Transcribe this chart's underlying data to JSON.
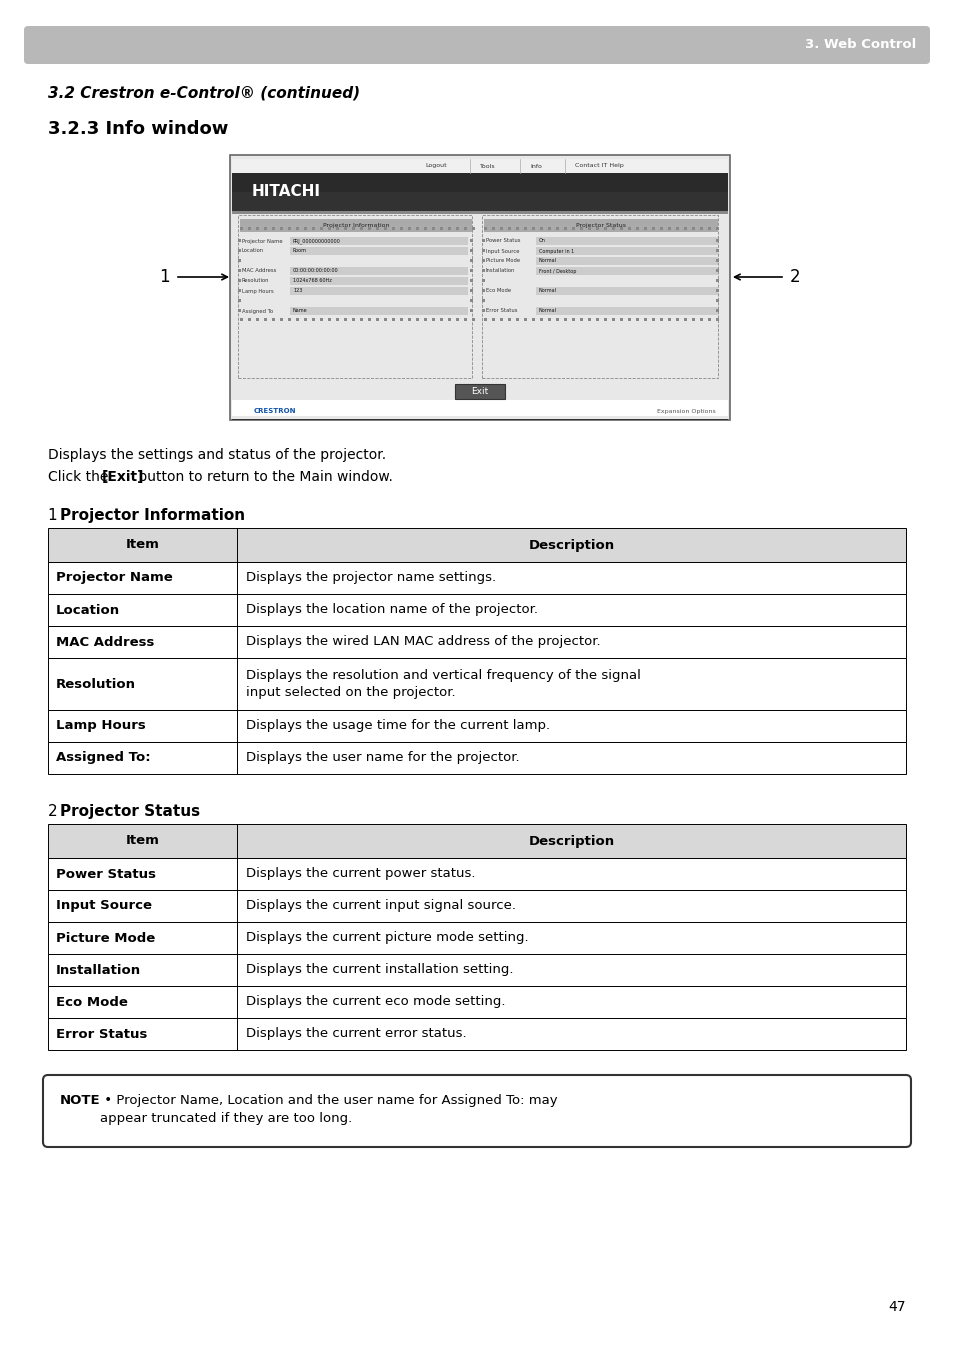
{
  "page_bg": "#ffffff",
  "header_bar_color": "#b8b8b8",
  "header_text": "3. Web Control",
  "header_text_color": "#ffffff",
  "section_title_italic": "3.2 Crestron e-Control® (continued)",
  "section_title_bold": "3.2.3 Info window",
  "body_text1": "Displays the settings and status of the projector.",
  "body_text2_pre": "Click the ",
  "body_text2_bold": "[Exit]",
  "body_text2_post": " button to return to the Main window.",
  "section1_title": "Projector Information",
  "section2_title": "Projector Status",
  "table1_header": [
    "Item",
    "Description"
  ],
  "table1_rows": [
    [
      "Projector Name",
      "Displays the projector name settings."
    ],
    [
      "Location",
      "Displays the location name of the projector."
    ],
    [
      "MAC Address",
      "Displays the wired LAN MAC address of the projector."
    ],
    [
      "Resolution",
      "Displays the resolution and vertical frequency of the signal\ninput selected on the projector."
    ],
    [
      "Lamp Hours",
      "Displays the usage time for the current lamp."
    ],
    [
      "Assigned To:",
      "Displays the user name for the projector."
    ]
  ],
  "table2_header": [
    "Item",
    "Description"
  ],
  "table2_rows": [
    [
      "Power Status",
      "Displays the current power status."
    ],
    [
      "Input Source",
      "Displays the current input signal source."
    ],
    [
      "Picture Mode",
      "Displays the current picture mode setting."
    ],
    [
      "Installation",
      "Displays the current installation setting."
    ],
    [
      "Eco Mode",
      "Displays the current eco mode setting."
    ],
    [
      "Error Status",
      "Displays the current error status."
    ]
  ],
  "note_bold": "NOTE",
  "note_text": " • Projector Name, Location and the user name for Assigned To: may\nappear truncated if they are too long.",
  "page_number": "47"
}
